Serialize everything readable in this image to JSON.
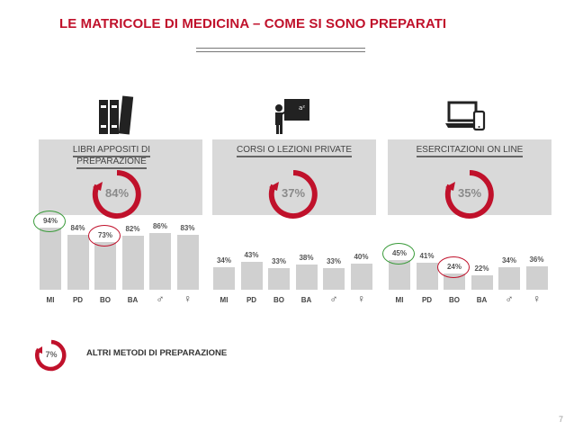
{
  "title": "LE MATRICOLE DI MEDICINA – COME SI SONO PREPARATI",
  "panels": [
    {
      "title_lines": [
        "LIBRI APPOSITI DI",
        "PREPARAZIONE"
      ],
      "overall": "84%",
      "icon": "books-icon",
      "bars": [
        {
          "label": "MI",
          "value": "94%",
          "h": 94,
          "mark": "green"
        },
        {
          "label": "PD",
          "value": "84%",
          "h": 84
        },
        {
          "label": "BO",
          "value": "73%",
          "h": 73,
          "mark": "red"
        },
        {
          "label": "BA",
          "value": "82%",
          "h": 82
        },
        {
          "label": "♂",
          "value": "86%",
          "h": 86
        },
        {
          "label": "♀",
          "value": "83%",
          "h": 83
        }
      ]
    },
    {
      "title_lines": [
        "CORSI O LEZIONI PRIVATE"
      ],
      "overall": "37%",
      "icon": "teacher-blackboard-icon",
      "bars": [
        {
          "label": "MI",
          "value": "34%",
          "h": 34
        },
        {
          "label": "PD",
          "value": "43%",
          "h": 43
        },
        {
          "label": "BO",
          "value": "33%",
          "h": 33
        },
        {
          "label": "BA",
          "value": "38%",
          "h": 38
        },
        {
          "label": "♂",
          "value": "33%",
          "h": 33
        },
        {
          "label": "♀",
          "value": "40%",
          "h": 40
        }
      ]
    },
    {
      "title_lines": [
        "ESERCITAZIONI ON LINE"
      ],
      "overall": "35%",
      "icon": "laptop-phone-icon",
      "bars": [
        {
          "label": "MI",
          "value": "45%",
          "h": 45,
          "mark": "green"
        },
        {
          "label": "PD",
          "value": "41%",
          "h": 41
        },
        {
          "label": "BO",
          "value": "24%",
          "h": 24,
          "mark": "red"
        },
        {
          "label": "BA",
          "value": "22%",
          "h": 22
        },
        {
          "label": "♂",
          "value": "34%",
          "h": 34
        },
        {
          "label": "♀",
          "value": "36%",
          "h": 36
        }
      ]
    }
  ],
  "other": {
    "value": "7%",
    "label": "ALTRI METODI DI PREPARAZIONE"
  },
  "page_number": "7",
  "colors": {
    "accent": "#c0112b",
    "panel": "#d9d9d9",
    "bar": "#d0d0d0",
    "good": "#3a9b3a"
  }
}
